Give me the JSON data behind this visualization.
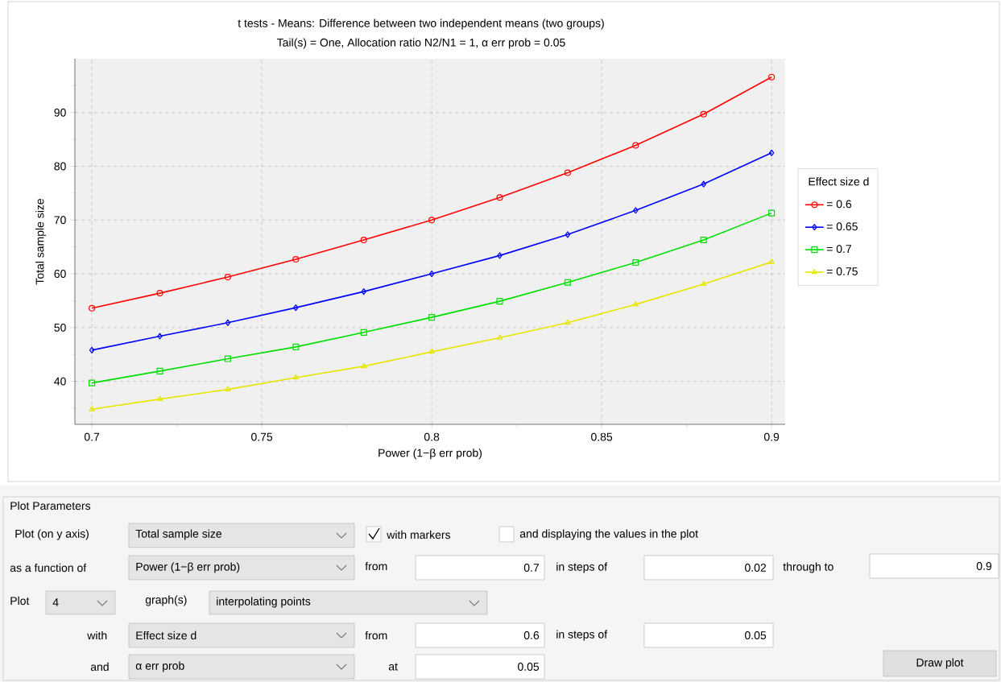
{
  "chart_data": {
    "type": "line",
    "title": "t tests - Means: Difference between two independent means (two groups)",
    "subtitle": "Tail(s) = One, Allocation ratio N2/N1 = 1, α err prob = 0.05",
    "xlabel": "Power (1−β err prob)",
    "ylabel": "Total sample size",
    "legend_title": "Effect size d",
    "x": [
      0.7,
      0.72,
      0.74,
      0.76,
      0.78,
      0.8,
      0.82,
      0.84,
      0.86,
      0.88,
      0.9
    ],
    "series": [
      {
        "name": "= 0.6",
        "color": "#ff0000",
        "marker": "circle",
        "values": [
          53.6,
          56.4,
          59.4,
          62.7,
          66.3,
          70.0,
          74.2,
          78.8,
          83.9,
          89.7,
          96.6
        ]
      },
      {
        "name": "= 0.65",
        "color": "#0000ff",
        "marker": "diamond",
        "values": [
          45.8,
          48.4,
          50.9,
          53.7,
          56.7,
          60.0,
          63.4,
          67.3,
          71.8,
          76.7,
          82.5
        ]
      },
      {
        "name": "= 0.7",
        "color": "#00dd00",
        "marker": "square",
        "values": [
          39.7,
          41.9,
          44.2,
          46.4,
          49.1,
          51.9,
          54.9,
          58.4,
          62.1,
          66.3,
          71.3
        ]
      },
      {
        "name": "= 0.75",
        "color": "#e6e600",
        "marker": "triangle",
        "values": [
          34.8,
          36.7,
          38.5,
          40.7,
          42.8,
          45.5,
          48.1,
          50.9,
          54.3,
          58.1,
          62.2
        ]
      }
    ],
    "xlim": [
      0.695,
      0.904
    ],
    "ylim": [
      32,
      100
    ],
    "xticks": [
      0.7,
      {
        "value": 0.725,
        "label": null
      },
      0.75,
      {
        "value": 0.775,
        "label": null
      },
      0.8,
      {
        "value": 0.825,
        "label": null
      },
      0.85,
      {
        "value": 0.875,
        "label": null
      },
      0.9
    ],
    "yticks": [
      {
        "value": 35,
        "label": null
      },
      40,
      {
        "value": 45,
        "label": null
      },
      50,
      {
        "value": 55,
        "label": null
      },
      60,
      {
        "value": 65,
        "label": null
      },
      70,
      {
        "value": 75,
        "label": null
      },
      80,
      {
        "value": 85,
        "label": null
      },
      90,
      {
        "value": 95,
        "label": null
      }
    ],
    "grid": true,
    "legend": "right",
    "line_style": "solid",
    "annotations": [
      "Plot Parameters",
      "Plot (on y axis)",
      "Total sample size",
      "with markers",
      "and displaying the values in the plot",
      "as a function of",
      "Power (1−β err prob)",
      "from",
      "0.7",
      "in steps of",
      "0.02",
      "through to",
      "0.9",
      "Plot",
      "4",
      "graph(s)",
      "interpolating points",
      "with",
      "Effect size d",
      "from",
      "0.6",
      "in steps of",
      "0.05",
      "and",
      "α err prob",
      "at",
      "0.05",
      "Draw plot"
    ]
  }
}
